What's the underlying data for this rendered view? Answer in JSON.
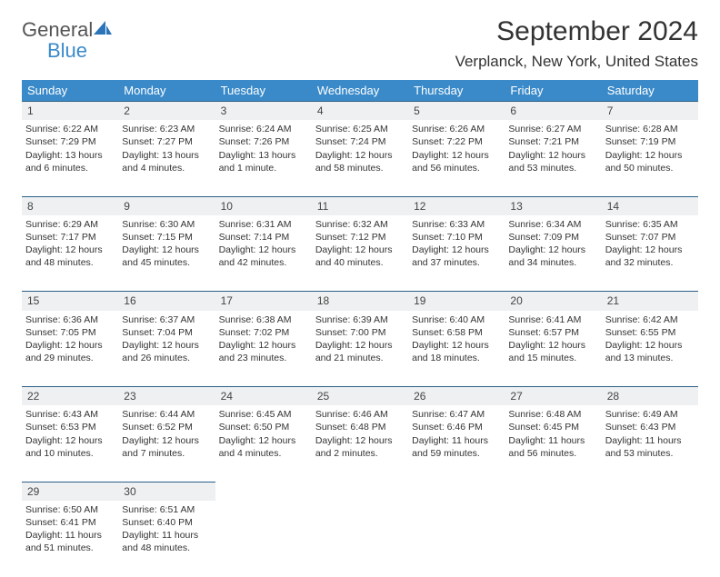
{
  "logo": {
    "word1": "General",
    "word2": "Blue",
    "icon_color": "#2b74b8"
  },
  "title": "September 2024",
  "location": "Verplanck, New York, United States",
  "colors": {
    "header_bg": "#3a8ac9",
    "header_fg": "#ffffff",
    "rule": "#2b5f88",
    "daynum_bg": "#eef0f1",
    "text": "#333333"
  },
  "weekdays": [
    "Sunday",
    "Monday",
    "Tuesday",
    "Wednesday",
    "Thursday",
    "Friday",
    "Saturday"
  ],
  "weeks": [
    [
      {
        "n": "1",
        "sr": "6:22 AM",
        "ss": "7:29 PM",
        "dl": "13 hours and 6 minutes."
      },
      {
        "n": "2",
        "sr": "6:23 AM",
        "ss": "7:27 PM",
        "dl": "13 hours and 4 minutes."
      },
      {
        "n": "3",
        "sr": "6:24 AM",
        "ss": "7:26 PM",
        "dl": "13 hours and 1 minute."
      },
      {
        "n": "4",
        "sr": "6:25 AM",
        "ss": "7:24 PM",
        "dl": "12 hours and 58 minutes."
      },
      {
        "n": "5",
        "sr": "6:26 AM",
        "ss": "7:22 PM",
        "dl": "12 hours and 56 minutes."
      },
      {
        "n": "6",
        "sr": "6:27 AM",
        "ss": "7:21 PM",
        "dl": "12 hours and 53 minutes."
      },
      {
        "n": "7",
        "sr": "6:28 AM",
        "ss": "7:19 PM",
        "dl": "12 hours and 50 minutes."
      }
    ],
    [
      {
        "n": "8",
        "sr": "6:29 AM",
        "ss": "7:17 PM",
        "dl": "12 hours and 48 minutes."
      },
      {
        "n": "9",
        "sr": "6:30 AM",
        "ss": "7:15 PM",
        "dl": "12 hours and 45 minutes."
      },
      {
        "n": "10",
        "sr": "6:31 AM",
        "ss": "7:14 PM",
        "dl": "12 hours and 42 minutes."
      },
      {
        "n": "11",
        "sr": "6:32 AM",
        "ss": "7:12 PM",
        "dl": "12 hours and 40 minutes."
      },
      {
        "n": "12",
        "sr": "6:33 AM",
        "ss": "7:10 PM",
        "dl": "12 hours and 37 minutes."
      },
      {
        "n": "13",
        "sr": "6:34 AM",
        "ss": "7:09 PM",
        "dl": "12 hours and 34 minutes."
      },
      {
        "n": "14",
        "sr": "6:35 AM",
        "ss": "7:07 PM",
        "dl": "12 hours and 32 minutes."
      }
    ],
    [
      {
        "n": "15",
        "sr": "6:36 AM",
        "ss": "7:05 PM",
        "dl": "12 hours and 29 minutes."
      },
      {
        "n": "16",
        "sr": "6:37 AM",
        "ss": "7:04 PM",
        "dl": "12 hours and 26 minutes."
      },
      {
        "n": "17",
        "sr": "6:38 AM",
        "ss": "7:02 PM",
        "dl": "12 hours and 23 minutes."
      },
      {
        "n": "18",
        "sr": "6:39 AM",
        "ss": "7:00 PM",
        "dl": "12 hours and 21 minutes."
      },
      {
        "n": "19",
        "sr": "6:40 AM",
        "ss": "6:58 PM",
        "dl": "12 hours and 18 minutes."
      },
      {
        "n": "20",
        "sr": "6:41 AM",
        "ss": "6:57 PM",
        "dl": "12 hours and 15 minutes."
      },
      {
        "n": "21",
        "sr": "6:42 AM",
        "ss": "6:55 PM",
        "dl": "12 hours and 13 minutes."
      }
    ],
    [
      {
        "n": "22",
        "sr": "6:43 AM",
        "ss": "6:53 PM",
        "dl": "12 hours and 10 minutes."
      },
      {
        "n": "23",
        "sr": "6:44 AM",
        "ss": "6:52 PM",
        "dl": "12 hours and 7 minutes."
      },
      {
        "n": "24",
        "sr": "6:45 AM",
        "ss": "6:50 PM",
        "dl": "12 hours and 4 minutes."
      },
      {
        "n": "25",
        "sr": "6:46 AM",
        "ss": "6:48 PM",
        "dl": "12 hours and 2 minutes."
      },
      {
        "n": "26",
        "sr": "6:47 AM",
        "ss": "6:46 PM",
        "dl": "11 hours and 59 minutes."
      },
      {
        "n": "27",
        "sr": "6:48 AM",
        "ss": "6:45 PM",
        "dl": "11 hours and 56 minutes."
      },
      {
        "n": "28",
        "sr": "6:49 AM",
        "ss": "6:43 PM",
        "dl": "11 hours and 53 minutes."
      }
    ],
    [
      {
        "n": "29",
        "sr": "6:50 AM",
        "ss": "6:41 PM",
        "dl": "11 hours and 51 minutes."
      },
      {
        "n": "30",
        "sr": "6:51 AM",
        "ss": "6:40 PM",
        "dl": "11 hours and 48 minutes."
      },
      null,
      null,
      null,
      null,
      null
    ]
  ],
  "labels": {
    "sunrise": "Sunrise: ",
    "sunset": "Sunset: ",
    "daylight": "Daylight: "
  }
}
